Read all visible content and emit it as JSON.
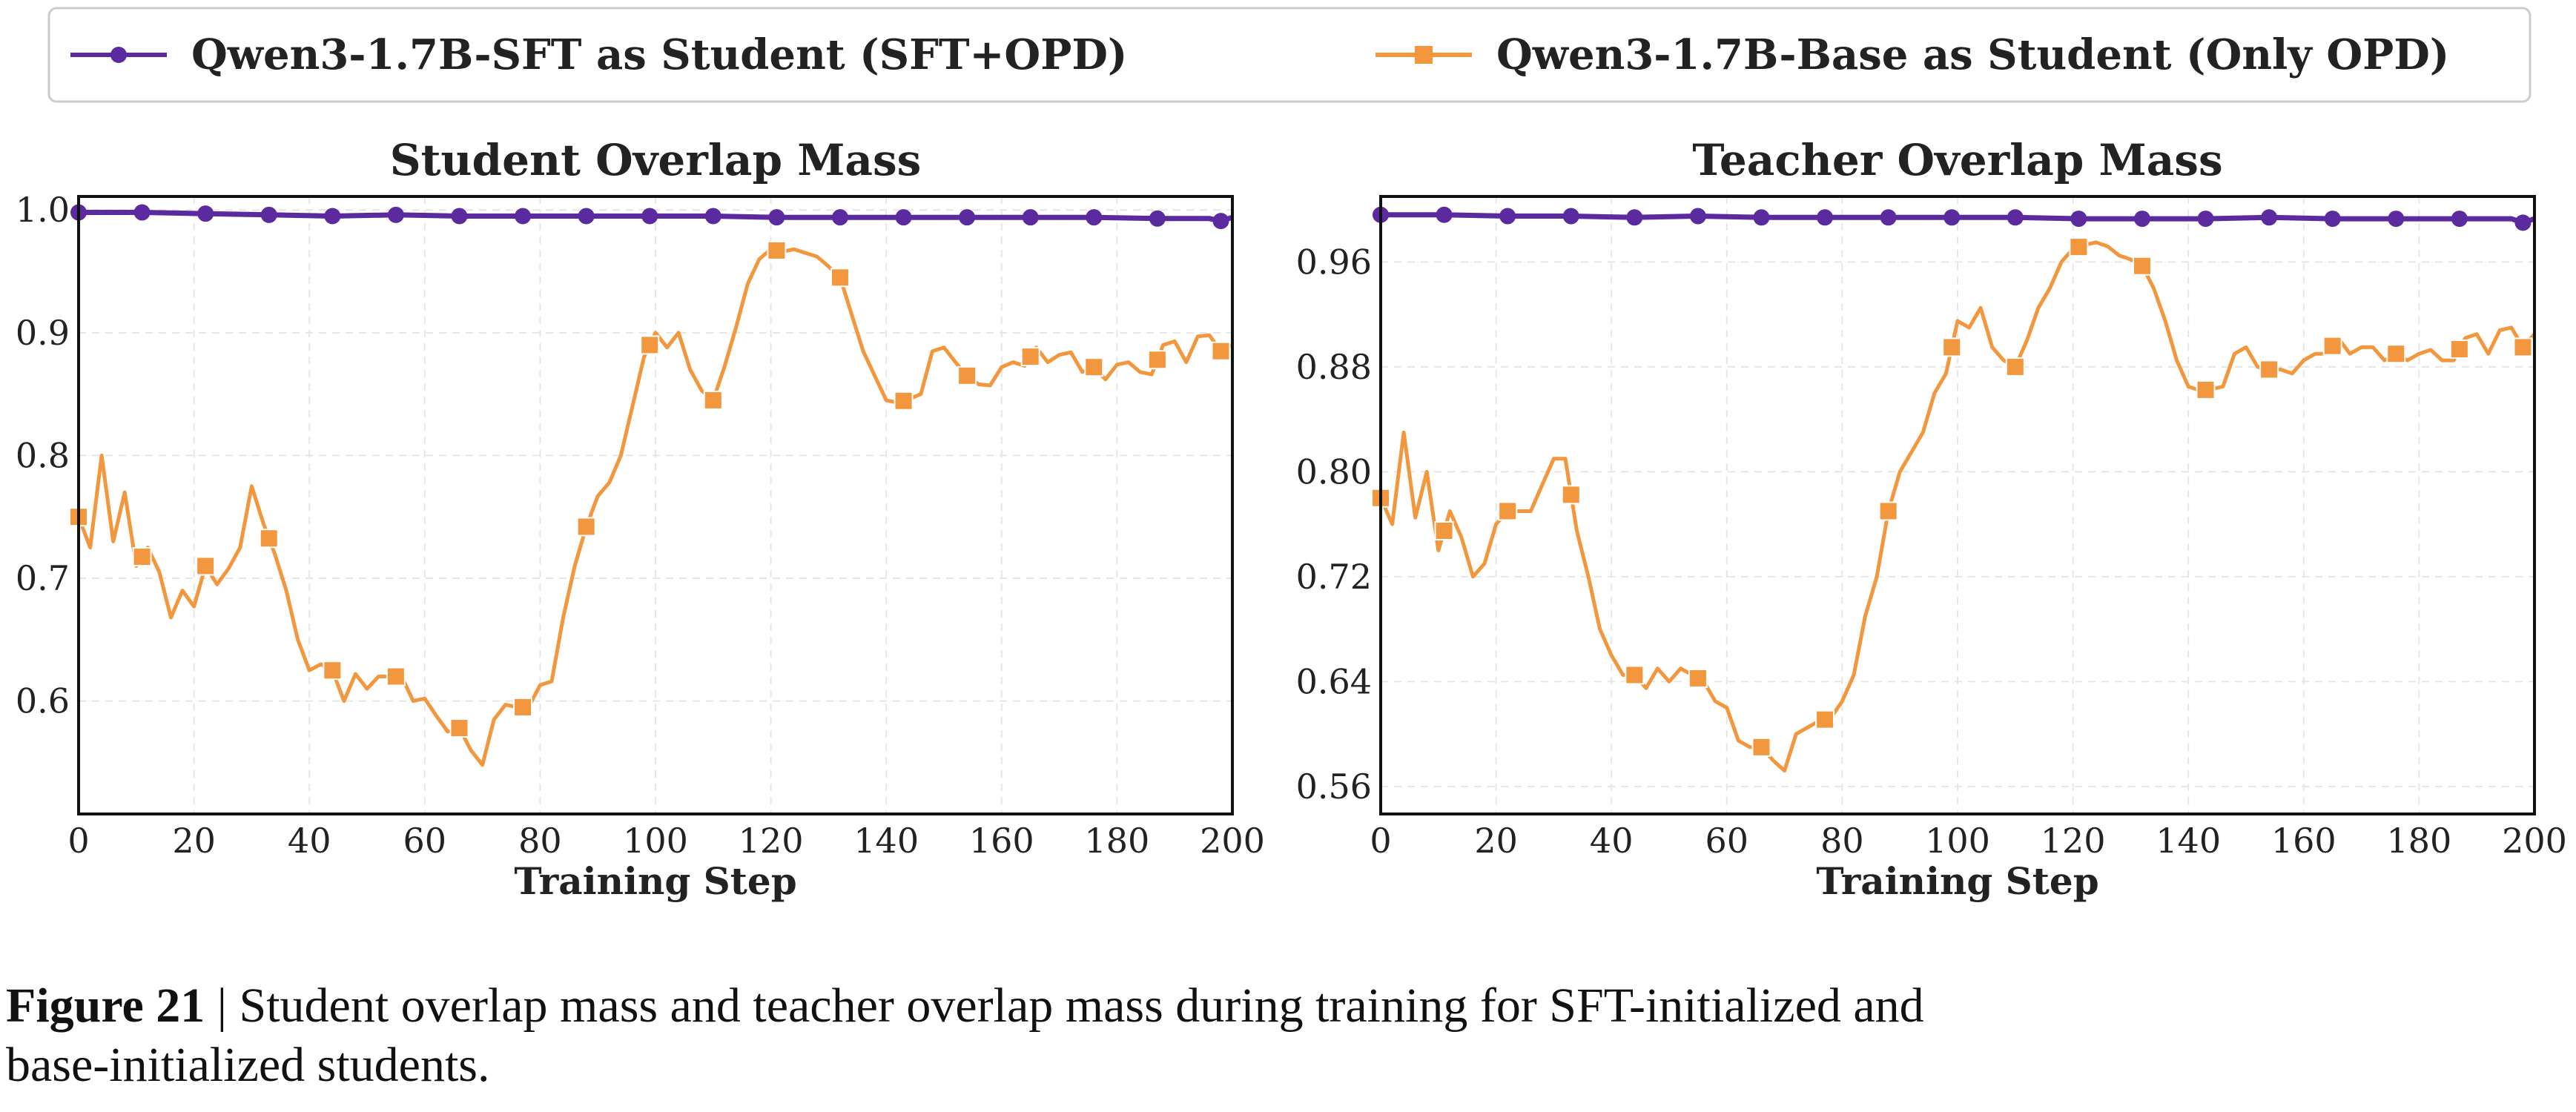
{
  "legend": {
    "items": [
      {
        "label": "Qwen3-1.7B-SFT as Student (SFT+OPD)",
        "color": "#5b2a9e",
        "marker": "circle"
      },
      {
        "label": "Qwen3-1.7B-Base as Student (Only OPD)",
        "color": "#f2973d",
        "marker": "square"
      }
    ],
    "placement": "top-center"
  },
  "caption": {
    "label": "Figure 21",
    "separator": " | ",
    "line1": "Student overlap mass and teacher overlap mass during training for SFT-initialized and",
    "line2": "base-initialized students."
  },
  "chart_data": [
    {
      "type": "line",
      "title": "Student Overlap Mass",
      "xlabel": "Training Step",
      "ylabel": "",
      "xlim": [
        0,
        200
      ],
      "ylim": [
        0.508,
        1.011
      ],
      "xticks": [
        0,
        20,
        40,
        60,
        80,
        100,
        120,
        140,
        160,
        180,
        200
      ],
      "yticks": [
        0.6,
        0.7,
        0.8,
        0.9,
        1.0
      ],
      "ytick_labels": [
        "0.6",
        "0.7",
        "0.8",
        "0.9",
        "1.0"
      ],
      "grid": true,
      "marker_every": 11,
      "series": [
        {
          "name": "Qwen3-1.7B-SFT as Student (SFT+OPD)",
          "x": [
            0,
            11,
            22,
            33,
            44,
            55,
            66,
            77,
            88,
            99,
            110,
            121,
            132,
            143,
            154,
            165,
            176,
            187,
            196,
            198,
            200
          ],
          "values": [
            0.998,
            0.998,
            0.997,
            0.996,
            0.995,
            0.996,
            0.995,
            0.995,
            0.995,
            0.995,
            0.995,
            0.994,
            0.994,
            0.994,
            0.994,
            0.994,
            0.994,
            0.993,
            0.993,
            0.991,
            0.994
          ]
        },
        {
          "name": "Qwen3-1.7B-Base as Student (Only OPD)",
          "x": [
            0,
            2,
            4,
            6,
            8,
            10,
            12,
            14,
            16,
            18,
            20,
            22,
            24,
            26,
            28,
            30,
            32,
            34,
            36,
            38,
            40,
            42,
            44,
            46,
            48,
            50,
            52,
            54,
            56,
            58,
            60,
            62,
            64,
            66,
            68,
            70,
            72,
            74,
            76,
            78,
            80,
            82,
            84,
            86,
            88,
            90,
            92,
            94,
            96,
            98,
            100,
            102,
            104,
            106,
            108,
            110,
            112,
            114,
            116,
            118,
            120,
            122,
            124,
            126,
            128,
            130,
            132,
            134,
            136,
            138,
            140,
            142,
            144,
            146,
            148,
            150,
            152,
            154,
            156,
            158,
            160,
            162,
            164,
            166,
            168,
            170,
            172,
            174,
            176,
            178,
            180,
            182,
            184,
            186,
            188,
            190,
            192,
            194,
            196,
            198,
            200
          ],
          "values": [
            0.75,
            0.725,
            0.8,
            0.73,
            0.77,
            0.71,
            0.725,
            0.705,
            0.668,
            0.69,
            0.677,
            0.71,
            0.695,
            0.708,
            0.725,
            0.775,
            0.745,
            0.72,
            0.69,
            0.65,
            0.625,
            0.63,
            0.625,
            0.6,
            0.622,
            0.61,
            0.62,
            0.62,
            0.62,
            0.6,
            0.602,
            0.588,
            0.575,
            0.578,
            0.56,
            0.548,
            0.585,
            0.597,
            0.595,
            0.595,
            0.613,
            0.616,
            0.668,
            0.71,
            0.742,
            0.767,
            0.778,
            0.8,
            0.84,
            0.88,
            0.9,
            0.888,
            0.9,
            0.87,
            0.853,
            0.845,
            0.873,
            0.905,
            0.94,
            0.96,
            0.968,
            0.966,
            0.968,
            0.965,
            0.962,
            0.954,
            0.945,
            0.915,
            0.885,
            0.865,
            0.845,
            0.843,
            0.846,
            0.85,
            0.885,
            0.888,
            0.876,
            0.865,
            0.858,
            0.857,
            0.872,
            0.876,
            0.873,
            0.888,
            0.876,
            0.882,
            0.884,
            0.868,
            0.872,
            0.862,
            0.874,
            0.876,
            0.868,
            0.866,
            0.89,
            0.893,
            0.876,
            0.897,
            0.898,
            0.885,
            0.89
          ]
        }
      ]
    },
    {
      "type": "line",
      "title": "Teacher Overlap Mass",
      "xlabel": "Training Step",
      "ylabel": "",
      "xlim": [
        0,
        200
      ],
      "ylim": [
        0.539,
        1.01
      ],
      "xticks": [
        0,
        20,
        40,
        60,
        80,
        100,
        120,
        140,
        160,
        180,
        200
      ],
      "yticks": [
        0.56,
        0.64,
        0.72,
        0.8,
        0.88,
        0.96
      ],
      "ytick_labels": [
        "0.56",
        "0.64",
        "0.72",
        "0.80",
        "0.88",
        "0.96"
      ],
      "grid": true,
      "marker_every": 11,
      "series": [
        {
          "name": "Qwen3-1.7B-SFT as Student (SFT+OPD)",
          "x": [
            0,
            11,
            22,
            33,
            44,
            55,
            66,
            77,
            88,
            99,
            110,
            121,
            132,
            143,
            154,
            165,
            176,
            187,
            196,
            198,
            200
          ],
          "values": [
            0.996,
            0.996,
            0.995,
            0.995,
            0.994,
            0.995,
            0.994,
            0.994,
            0.994,
            0.994,
            0.994,
            0.993,
            0.993,
            0.993,
            0.994,
            0.993,
            0.993,
            0.993,
            0.993,
            0.99,
            0.993
          ]
        },
        {
          "name": "Qwen3-1.7B-Base as Student (Only OPD)",
          "x": [
            0,
            2,
            4,
            6,
            8,
            10,
            12,
            14,
            16,
            18,
            20,
            22,
            24,
            26,
            28,
            30,
            32,
            34,
            36,
            38,
            40,
            42,
            44,
            46,
            48,
            50,
            52,
            54,
            56,
            58,
            60,
            62,
            64,
            66,
            68,
            70,
            72,
            74,
            76,
            78,
            80,
            82,
            84,
            86,
            88,
            90,
            92,
            94,
            96,
            98,
            100,
            102,
            104,
            106,
            108,
            110,
            112,
            114,
            116,
            118,
            120,
            122,
            124,
            126,
            128,
            130,
            132,
            134,
            136,
            138,
            140,
            142,
            144,
            146,
            148,
            150,
            152,
            154,
            156,
            158,
            160,
            162,
            164,
            166,
            168,
            170,
            172,
            174,
            176,
            178,
            180,
            182,
            184,
            186,
            188,
            190,
            192,
            194,
            196,
            198,
            200
          ],
          "values": [
            0.78,
            0.76,
            0.83,
            0.765,
            0.8,
            0.74,
            0.77,
            0.75,
            0.72,
            0.73,
            0.76,
            0.77,
            0.77,
            0.77,
            0.79,
            0.81,
            0.81,
            0.755,
            0.72,
            0.68,
            0.66,
            0.645,
            0.645,
            0.635,
            0.65,
            0.64,
            0.65,
            0.645,
            0.64,
            0.625,
            0.62,
            0.595,
            0.59,
            0.59,
            0.58,
            0.572,
            0.6,
            0.605,
            0.61,
            0.612,
            0.625,
            0.645,
            0.69,
            0.72,
            0.77,
            0.8,
            0.815,
            0.83,
            0.86,
            0.875,
            0.915,
            0.91,
            0.925,
            0.895,
            0.885,
            0.88,
            0.9,
            0.925,
            0.94,
            0.96,
            0.97,
            0.973,
            0.975,
            0.972,
            0.965,
            0.962,
            0.957,
            0.94,
            0.915,
            0.885,
            0.865,
            0.862,
            0.863,
            0.865,
            0.89,
            0.895,
            0.88,
            0.878,
            0.878,
            0.875,
            0.885,
            0.89,
            0.89,
            0.902,
            0.89,
            0.895,
            0.895,
            0.885,
            0.89,
            0.885,
            0.89,
            0.893,
            0.885,
            0.885,
            0.902,
            0.905,
            0.89,
            0.908,
            0.91,
            0.895,
            0.905
          ]
        }
      ]
    }
  ]
}
